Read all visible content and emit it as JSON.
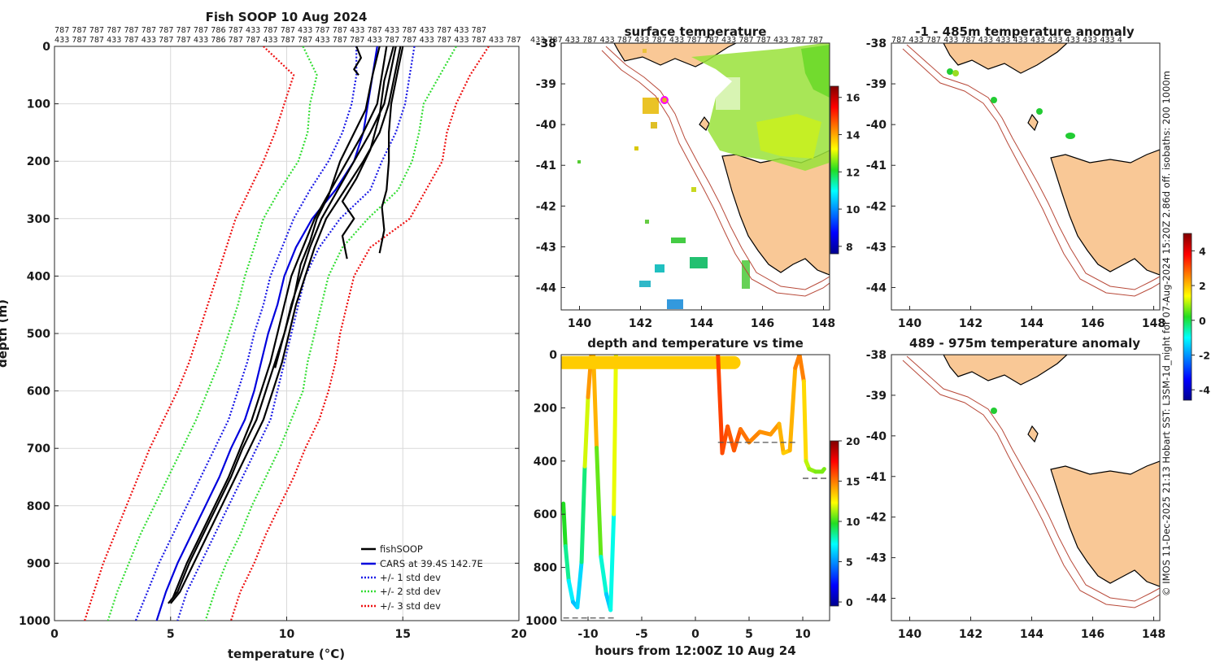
{
  "profile": {
    "title": "Fish SOOP 10 Aug 2024",
    "counts_row1": "787 787 787 787 787 787 787 787 787 786 787 433 787 787 433 787 787 433 787 433 787 433 787 433 787",
    "counts_row2": "433 787 787 433 787 433 787 787 433 786 787 787 433 787 787 433 787 787 433 787 787 433 787 433 787 433 787",
    "xlabel": "temperature (°C)",
    "ylabel": "depth (m)",
    "legend": [
      "fishSOOP",
      "CARS at 39.4S 142.7E",
      "+/- 1 std dev",
      "+/- 2 std dev",
      "+/- 3 std dev"
    ],
    "colors": {
      "obs": "#000000",
      "cars": "#0000dd",
      "std1": "#1a1ae6",
      "std2": "#33dd33",
      "std3": "#ee1111"
    }
  },
  "sst_map": {
    "title": "surface temperature",
    "colorbar_ticks": [
      "8",
      "10",
      "12",
      "14",
      "16"
    ],
    "counts_overflow": "433 787 433 787 433 787 433 787 433 787 787 433 787 787 433 787 787"
  },
  "time_panel": {
    "title": "depth and temperature vs time",
    "xlabel": "hours from 12:00Z 10 Aug 24",
    "colorbar_ticks": [
      "0",
      "5",
      "10",
      "15",
      "20"
    ]
  },
  "anom1": {
    "title": "-1 - 485m temperature anomaly",
    "counts_overflow": "787 433 787 433 787 433 433 433 433 433 433 433 433 4"
  },
  "anom2": {
    "title": "489 - 975m temperature anomaly",
    "colorbar_ticks": [
      "-4",
      "-2",
      "0",
      "2",
      "4"
    ]
  },
  "footer_vertical": "© IMOS 11-Dec-2025 21:13 Hobart SST: L3SM-1d_night for 07-Aug-2024 15:20Z 2.86d off. isobaths: 200  1000m",
  "chart_data": [
    {
      "type": "line",
      "title": "Fish SOOP 10 Aug 2024",
      "xlabel": "temperature (°C)",
      "ylabel": "depth (m)",
      "xlim": [
        0,
        20
      ],
      "ylim": [
        1000,
        0
      ],
      "xticks": [
        0,
        5,
        10,
        15,
        20
      ],
      "yticks": [
        0,
        100,
        200,
        300,
        400,
        500,
        600,
        700,
        800,
        900,
        1000
      ],
      "series": [
        {
          "name": "CARS at 39.4S 142.7E",
          "depth": [
            0,
            50,
            100,
            150,
            200,
            250,
            300,
            350,
            400,
            450,
            500,
            550,
            600,
            650,
            700,
            750,
            800,
            850,
            900,
            950,
            1000
          ],
          "temp": [
            13.9,
            13.7,
            13.5,
            13.3,
            12.9,
            12.1,
            11.1,
            10.4,
            9.9,
            9.6,
            9.2,
            8.9,
            8.6,
            8.2,
            7.6,
            7.1,
            6.5,
            5.9,
            5.3,
            4.8,
            4.4
          ]
        },
        {
          "name": "+/- 1 std dev",
          "lower": [
            13.0,
            13.0,
            12.8,
            12.4,
            11.8,
            11.0,
            10.3,
            9.8,
            9.3,
            9.0,
            8.6,
            8.3,
            7.9,
            7.5,
            6.9,
            6.3,
            5.7,
            5.1,
            4.5,
            4.0,
            3.5
          ],
          "upper": [
            15.5,
            15.3,
            15.1,
            14.7,
            14.1,
            13.6,
            12.3,
            11.4,
            10.8,
            10.5,
            10.2,
            9.9,
            9.6,
            9.3,
            8.7,
            8.1,
            7.5,
            6.9,
            6.3,
            5.7,
            5.3
          ]
        },
        {
          "name": "+/- 2 std dev",
          "lower": [
            10.7,
            11.3,
            11.0,
            10.9,
            10.5,
            9.7,
            9.0,
            8.6,
            8.2,
            7.9,
            7.5,
            7.1,
            6.6,
            6.1,
            5.5,
            4.9,
            4.3,
            3.7,
            3.2,
            2.7,
            2.3
          ],
          "upper": [
            17.3,
            16.6,
            15.9,
            15.7,
            15.4,
            14.8,
            13.5,
            12.4,
            11.8,
            11.5,
            11.2,
            10.9,
            10.7,
            10.2,
            9.7,
            9.1,
            8.5,
            8.0,
            7.4,
            6.9,
            6.5
          ]
        },
        {
          "name": "+/- 3 std dev",
          "lower": [
            9.0,
            10.3,
            9.9,
            9.5,
            9.0,
            8.4,
            7.8,
            7.4,
            7.0,
            6.6,
            6.2,
            5.8,
            5.3,
            4.7,
            4.1,
            3.6,
            3.1,
            2.6,
            2.1,
            1.7,
            1.3
          ],
          "upper": [
            18.7,
            17.9,
            17.3,
            16.9,
            16.7,
            16.0,
            15.3,
            13.6,
            12.9,
            12.6,
            12.3,
            12.1,
            11.8,
            11.4,
            10.8,
            10.3,
            9.7,
            9.1,
            8.6,
            8.0,
            7.6
          ]
        },
        {
          "name": "fishSOOP",
          "casts": [
            {
              "depth": [
                0,
                40,
                100,
                150,
                200,
                250,
                280,
                320,
                360
              ],
              "temp": [
                15.0,
                14.8,
                14.5,
                14.4,
                14.4,
                14.3,
                14.1,
                14.2,
                14.0
              ]
            },
            {
              "depth": [
                0,
                60,
                120,
                180,
                230,
                270,
                300,
                330,
                370
              ],
              "temp": [
                14.6,
                14.2,
                14.0,
                13.6,
                13.0,
                12.4,
                12.9,
                12.4,
                12.6
              ]
            },
            {
              "depth": [
                0,
                100,
                150,
                200,
                250,
                300,
                350,
                400,
                450,
                500,
                550,
                600,
                650,
                700,
                750,
                800,
                850,
                900,
                950,
                970
              ],
              "temp": [
                14.9,
                14.4,
                14.0,
                13.3,
                12.5,
                11.7,
                11.2,
                10.8,
                10.4,
                10.1,
                9.8,
                9.4,
                9.0,
                8.4,
                7.8,
                7.2,
                6.6,
                6.0,
                5.4,
                5.0
              ]
            },
            {
              "depth": [
                0,
                100,
                150,
                200,
                250,
                300,
                350,
                400,
                450,
                500,
                550,
                600,
                650,
                700,
                750,
                800,
                850,
                900,
                950,
                970
              ],
              "temp": [
                14.7,
                14.2,
                13.6,
                12.9,
                12.2,
                11.5,
                11.0,
                10.6,
                10.2,
                9.9,
                9.5,
                9.1,
                8.7,
                8.1,
                7.6,
                7.0,
                6.4,
                5.8,
                5.3,
                4.9
              ]
            },
            {
              "depth": [
                0,
                100,
                150,
                200,
                250,
                300,
                350,
                400,
                450,
                500,
                550,
                600,
                650,
                700,
                750,
                800,
                850,
                900,
                950,
                960
              ],
              "temp": [
                14.3,
                13.9,
                13.3,
                12.6,
                11.9,
                11.2,
                10.7,
                10.2,
                9.9,
                9.6,
                9.3,
                8.9,
                8.5,
                8.0,
                7.5,
                6.9,
                6.3,
                5.7,
                5.2,
                5.1
              ]
            },
            {
              "depth": [
                0,
                50,
                110,
                200,
                260,
                300,
                340,
                380,
                440,
                500,
                560
              ],
              "temp": [
                14.0,
                13.7,
                13.4,
                12.3,
                11.8,
                11.3,
                11.0,
                10.6,
                10.3,
                9.9,
                9.5
              ]
            },
            {
              "depth": [
                0,
                20,
                40,
                50
              ],
              "temp": [
                13.0,
                13.2,
                12.9,
                13.1
              ]
            }
          ]
        }
      ]
    },
    {
      "type": "line",
      "title": "depth and temperature vs time",
      "xlabel": "hours from 12:00Z 10 Aug 24",
      "xlim": [
        -12.5,
        12.5
      ],
      "ylim": [
        1000,
        0
      ],
      "xticks": [
        -10,
        -5,
        0,
        5,
        10
      ],
      "yticks": [
        0,
        200,
        400,
        600,
        800,
        1000
      ],
      "colorbar": {
        "range": [
          0,
          20
        ],
        "ticks": [
          0,
          5,
          10,
          15,
          20
        ]
      },
      "series": [
        {
          "name": "dive1",
          "hours": [
            -12.3,
            -12.1,
            -11.8,
            -11.4,
            -11.0,
            -10.6,
            -10.3,
            -10.0,
            -9.7
          ],
          "depth": [
            560,
            720,
            850,
            930,
            950,
            780,
            420,
            160,
            0
          ],
          "temp": [
            10.5,
            9.5,
            8.0,
            6.5,
            6.0,
            7.5,
            10.5,
            13.5,
            15.5
          ]
        },
        {
          "name": "dive2",
          "hours": [
            -9.5,
            -9.2,
            -8.8,
            -8.3,
            -7.9,
            -7.6,
            -7.4
          ],
          "depth": [
            0,
            350,
            760,
            900,
            960,
            600,
            0
          ],
          "temp": [
            15.5,
            12.5,
            9.0,
            7.0,
            6.0,
            9.5,
            15.0
          ]
        },
        {
          "name": "surface",
          "hours": [
            -12.3,
            3.6
          ],
          "depth": [
            30,
            30
          ],
          "temp": [
            13.5,
            13.5
          ]
        },
        {
          "name": "dive3",
          "hours": [
            2.1,
            2.5,
            3.0,
            3.6,
            4.2,
            5.0,
            6.0,
            7.0,
            7.8,
            8.2,
            8.8,
            9.3,
            9.7,
            10.1,
            10.3,
            10.6,
            11.2,
            11.8,
            12.0
          ],
          "depth": [
            0,
            370,
            270,
            360,
            280,
            330,
            290,
            300,
            260,
            370,
            360,
            50,
            0,
            100,
            400,
            430,
            440,
            440,
            430
          ],
          "temp": [
            16.0,
            16.5,
            15.5,
            16.0,
            15.5,
            15.0,
            14.8,
            14.5,
            14.5,
            13.5,
            13.5,
            14.5,
            15.5,
            14.5,
            12.0,
            11.5,
            11.0,
            11.0,
            11.0
          ]
        }
      ]
    }
  ]
}
